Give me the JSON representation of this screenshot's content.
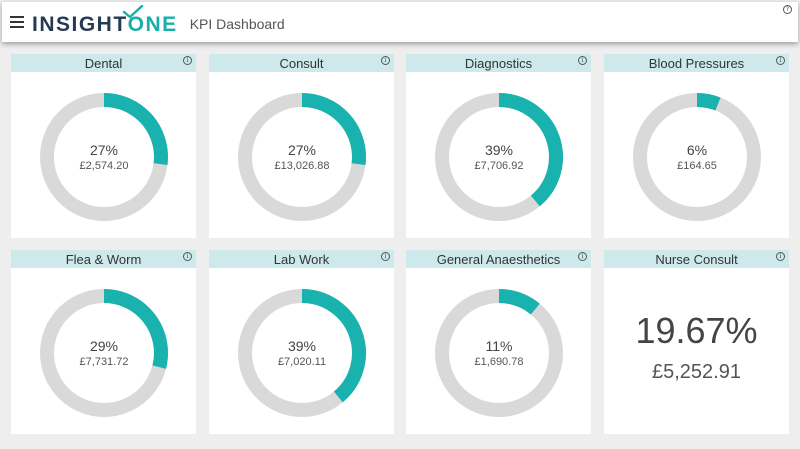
{
  "header": {
    "logo_part1": "INSIGHT",
    "logo_part2": "ONE",
    "title": "KPI Dashboard",
    "help": "?",
    "logo_color_dark": "#253b52",
    "logo_color_accent": "#1aaea9"
  },
  "colors": {
    "accent": "#1ab2ae",
    "track": "#d9d9d9",
    "card_header": "#cde9ec"
  },
  "cards": [
    {
      "title": "Dental",
      "percent": 27,
      "percent_label": "27%",
      "amount": "£2,574.20"
    },
    {
      "title": "Consult",
      "percent": 27,
      "percent_label": "27%",
      "amount": "£13,026.88"
    },
    {
      "title": "Diagnostics",
      "percent": 39,
      "percent_label": "39%",
      "amount": "£7,706.92"
    },
    {
      "title": "Blood Pressures",
      "percent": 6,
      "percent_label": "6%",
      "amount": "£164.65"
    },
    {
      "title": "Flea & Worm",
      "percent": 29,
      "percent_label": "29%",
      "amount": "£7,731.72"
    },
    {
      "title": "Lab Work",
      "percent": 39,
      "percent_label": "39%",
      "amount": "£7,020.11"
    },
    {
      "title": "General Anaesthetics",
      "percent": 11,
      "percent_label": "11%",
      "amount": "£1,690.78"
    }
  ],
  "nurse": {
    "title": "Nurse Consult",
    "percent_label": "19.67%",
    "amount": "£5,252.91"
  },
  "info_glyph": "i"
}
